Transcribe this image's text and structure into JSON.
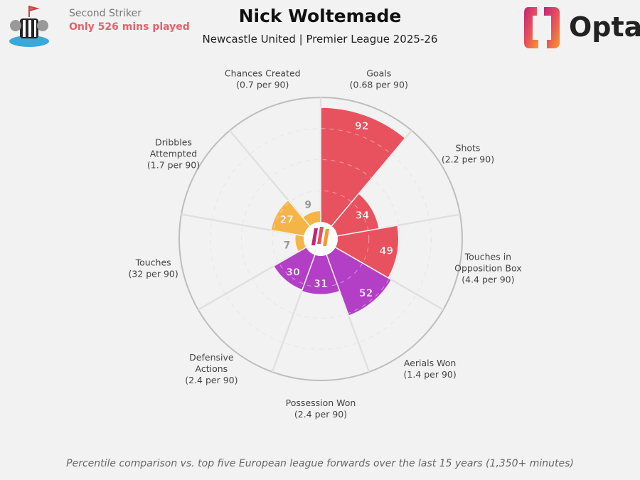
{
  "header": {
    "title": "Nick Woltemade",
    "subtitle": "Newcastle United | Premier League 2025-26",
    "position": "Second Striker",
    "minutes_note": "Only 526 mins played",
    "brand": "Opta",
    "club_crest": "newcastle-united-crest-icon"
  },
  "footer": "Percentile comparison vs. top five European league forwards over the last 15 years (1,350+ minutes)",
  "colors": {
    "attacking": "#e8525e",
    "defending": "#b33fc6",
    "possession": "#f5b546",
    "background": "#f2f2f2"
  },
  "chart_data": {
    "type": "polar-bar",
    "title": "Nick Woltemade",
    "rlim": [
      0,
      100
    ],
    "grid": true,
    "categories": [
      {
        "label": "Goals",
        "sub": "(0.68 per 90)",
        "value": 92,
        "group": "attacking"
      },
      {
        "label": "Shots",
        "sub": "(2.2 per 90)",
        "value": 34,
        "group": "attacking"
      },
      {
        "label": "Touches in Opposition Box",
        "sub": "(4.4 per 90)",
        "value": 49,
        "group": "attacking"
      },
      {
        "label": "Aerials Won",
        "sub": "(1.4 per 90)",
        "value": 52,
        "group": "defending"
      },
      {
        "label": "Possession Won",
        "sub": "(2.4 per 90)",
        "value": 31,
        "group": "defending"
      },
      {
        "label": "Defensive Actions",
        "sub": "(2.4 per 90)",
        "value": 30,
        "group": "defending"
      },
      {
        "label": "Touches",
        "sub": "(32 per 90)",
        "value": 7,
        "group": "possession"
      },
      {
        "label": "Dribbles Attempted",
        "sub": "(1.7 per 90)",
        "value": 27,
        "group": "possession"
      },
      {
        "label": "Chances Created",
        "sub": "(0.7 per 90)",
        "value": 9,
        "group": "possession"
      }
    ]
  }
}
